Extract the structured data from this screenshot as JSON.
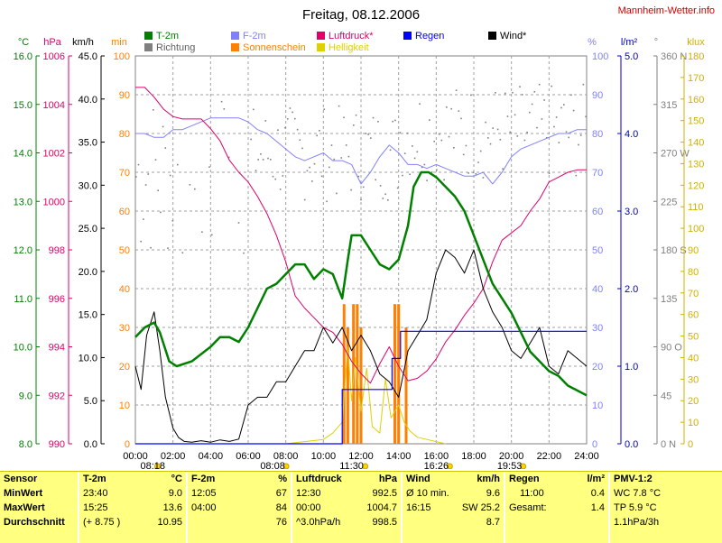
{
  "title": "Freitag, 08.12.2006",
  "site_link": "Mannheim-Wetter.info",
  "legend": [
    {
      "label": "T-2m",
      "color": "#008000"
    },
    {
      "label": "F-2m",
      "color": "#8080ff"
    },
    {
      "label": "Luftdruck*",
      "color": "#e0006a"
    },
    {
      "label": "Regen",
      "color": "#0000ff"
    },
    {
      "label": "Wind*",
      "color": "#000000"
    },
    {
      "label": "Richtung",
      "color": "#808080"
    },
    {
      "label": "Sonnenschein",
      "color": "#ff8000"
    },
    {
      "label": "Helligkeit",
      "color": "#e0d000"
    }
  ],
  "axis_units": {
    "temp": "°C",
    "pressure": "hPa",
    "wind": "km/h",
    "sun": "min",
    "humidity": "%",
    "rain": "l/m²",
    "direction": "°",
    "light": "klux"
  },
  "axes": {
    "temp": [
      "8.0",
      "9.0",
      "10.0",
      "11.0",
      "12.0",
      "13.0",
      "14.0",
      "15.0",
      "16.0"
    ],
    "pressure": [
      "990",
      "992",
      "994",
      "996",
      "998",
      "1000",
      "1002",
      "1004",
      "1006"
    ],
    "wind": [
      "0.0",
      "5.0",
      "10.0",
      "15.0",
      "20.0",
      "25.0",
      "30.0",
      "35.0",
      "40.0",
      "45.0"
    ],
    "sun": [
      "0",
      "10",
      "20",
      "30",
      "40",
      "50",
      "60",
      "70",
      "80",
      "90",
      "100"
    ],
    "humidity": [
      "0",
      "10",
      "20",
      "30",
      "40",
      "50",
      "60",
      "70",
      "80",
      "90",
      "100"
    ],
    "rain": [
      "0.0",
      "1.0",
      "2.0",
      "3.0",
      "4.0",
      "5.0"
    ],
    "direction": [
      "0 N",
      "45",
      "90 O",
      "135",
      "180 S",
      "225",
      "270 W",
      "315",
      "360 N"
    ],
    "light": [
      "0",
      "10",
      "20",
      "30",
      "40",
      "50",
      "60",
      "70",
      "80",
      "90",
      "100",
      "110",
      "120",
      "130",
      "140",
      "150",
      "160",
      "170",
      "180"
    ],
    "time": [
      "00:00",
      "02:00",
      "04:00",
      "06:00",
      "08:00",
      "10:00",
      "12:00",
      "14:00",
      "16:00",
      "18:00",
      "20:00",
      "22:00",
      "24:00"
    ]
  },
  "sun_times": [
    {
      "label": "08:18",
      "h": -0.6
    },
    {
      "label": "08:08",
      "h": 7.3
    },
    {
      "label": "11:30",
      "h": 11.5
    },
    {
      "label": "16:26",
      "h": 16.0
    },
    {
      "label": "19:53",
      "h": 19.9
    }
  ],
  "chart_data": {
    "type": "line",
    "title": "Freitag, 08.12.2006",
    "x_unit": "hour",
    "xlim": [
      0,
      24
    ],
    "series": [
      {
        "name": "T-2m",
        "unit": "°C",
        "ylim": [
          8,
          16
        ],
        "color": "#008000",
        "x": [
          0,
          0.5,
          1,
          1.3,
          1.8,
          2.2,
          3,
          4,
          4.5,
          5,
          5.5,
          6,
          6.5,
          7,
          7.5,
          8,
          8.5,
          9,
          9.5,
          10,
          10.5,
          11,
          11.3,
          11.5,
          12,
          12.5,
          13,
          13.5,
          14,
          14.5,
          14.8,
          15.2,
          15.6,
          16,
          16.5,
          17,
          17.5,
          18,
          18.5,
          19,
          19.5,
          20,
          20.5,
          21,
          21.5,
          22,
          22.5,
          23,
          23.5,
          24
        ],
        "y": [
          10.2,
          10.4,
          10.5,
          10.3,
          9.7,
          9.6,
          9.7,
          10.0,
          10.2,
          10.2,
          10.1,
          10.4,
          10.8,
          11.2,
          11.3,
          11.5,
          11.7,
          11.7,
          11.4,
          11.6,
          11.5,
          11.0,
          11.8,
          12.3,
          12.3,
          12.0,
          11.7,
          11.6,
          11.8,
          12.5,
          13.3,
          13.6,
          13.6,
          13.5,
          13.3,
          13.1,
          12.8,
          12.3,
          11.8,
          11.3,
          11.0,
          10.7,
          10.3,
          9.9,
          9.7,
          9.5,
          9.4,
          9.2,
          9.1,
          9.0
        ]
      },
      {
        "name": "Luftdruck*",
        "unit": "hPa",
        "ylim": [
          990,
          1006
        ],
        "color": "#e0006a",
        "x": [
          0,
          0.5,
          1,
          1.5,
          2,
          2.5,
          3,
          3.5,
          4,
          4.5,
          5,
          5.5,
          6,
          6.5,
          7,
          7.5,
          8,
          8.5,
          9,
          9.5,
          10,
          10.5,
          11,
          11.5,
          12,
          12.5,
          13,
          13.5,
          14,
          14.5,
          15,
          15.5,
          16,
          16.5,
          17,
          17.5,
          18,
          18.5,
          19,
          19.5,
          20,
          20.5,
          21,
          21.5,
          22,
          22.5,
          23,
          23.5,
          24
        ],
        "y": [
          1004.7,
          1004.7,
          1004.3,
          1003.8,
          1003.5,
          1003.4,
          1003.4,
          1003.4,
          1003.0,
          1002.5,
          1001.7,
          1001.2,
          1000.8,
          1000.2,
          999.5,
          998.6,
          997.5,
          996.1,
          995.6,
          995.2,
          994.8,
          994.6,
          994.1,
          993.4,
          992.9,
          992.5,
          993.3,
          994.0,
          993.2,
          992.6,
          992.7,
          993.0,
          993.5,
          994.2,
          994.7,
          995.3,
          995.8,
          996.4,
          997.5,
          998.4,
          998.7,
          999.0,
          999.6,
          1000.1,
          1000.8,
          1001.0,
          1001.2,
          1001.3,
          1001.3
        ]
      },
      {
        "name": "F-2m",
        "unit": "%",
        "ylim": [
          0,
          100
        ],
        "color": "#8080ff",
        "x": [
          0,
          0.5,
          1,
          1.5,
          2,
          2.5,
          3,
          3.5,
          4,
          4.5,
          5,
          5.5,
          6,
          6.5,
          7,
          7.5,
          8,
          8.5,
          9,
          9.5,
          10,
          10.5,
          11,
          11.5,
          12,
          12.5,
          13,
          13.5,
          14,
          14.5,
          15,
          15.5,
          16,
          16.5,
          17,
          17.5,
          18,
          18.5,
          19,
          19.5,
          20,
          20.5,
          21,
          21.5,
          22,
          22.5,
          23,
          23.5,
          24
        ],
        "y": [
          80,
          80,
          79,
          79,
          81,
          81,
          82,
          83,
          84,
          84,
          84,
          84,
          83,
          81,
          80,
          78,
          76,
          74,
          73,
          74,
          75,
          73,
          73,
          72,
          67,
          70,
          74,
          77,
          75,
          72,
          72,
          71,
          72,
          71,
          70,
          69,
          69,
          70,
          67,
          70,
          74,
          76,
          77,
          78,
          79,
          80,
          80,
          81,
          81
        ]
      },
      {
        "name": "Wind*",
        "unit": "km/h",
        "ylim": [
          0,
          50
        ],
        "color": "#000000",
        "x": [
          0,
          0.3,
          0.6,
          1,
          1.3,
          1.6,
          2,
          2.3,
          2.6,
          3,
          3.5,
          4,
          4.5,
          5,
          5.5,
          6,
          6.5,
          7,
          7.5,
          8,
          8.5,
          9,
          9.5,
          10,
          10.5,
          11,
          11.5,
          12,
          12.5,
          13,
          13.5,
          14,
          14.5,
          15,
          15.5,
          16,
          16.5,
          17,
          17.5,
          18,
          18.5,
          19,
          19.5,
          20,
          20.5,
          21,
          21.5,
          22,
          22.5,
          23,
          23.5,
          24
        ],
        "y": [
          10,
          7,
          14,
          17,
          12,
          6,
          2,
          0.8,
          0.3,
          0.2,
          0.4,
          0.2,
          0.5,
          0.3,
          0.6,
          5,
          6,
          6,
          8,
          8,
          10,
          12,
          12,
          15,
          13,
          15,
          12,
          14,
          12,
          9,
          8,
          6,
          12,
          14,
          16,
          22,
          25,
          24,
          22,
          25,
          20,
          17,
          15,
          12,
          11,
          13,
          15,
          10,
          9,
          12,
          11,
          10
        ]
      },
      {
        "name": "Regen",
        "unit": "l/m²",
        "ylim": [
          0,
          5
        ],
        "color": "#0000ff",
        "x": [
          0,
          11.0,
          11.0,
          13.65,
          13.65,
          14.1,
          14.1,
          24
        ],
        "y": [
          0,
          0,
          0.7,
          0.7,
          1.1,
          1.1,
          1.45,
          1.45
        ]
      },
      {
        "name": "Helligkeit",
        "unit": "klux",
        "ylim": [
          0,
          180
        ],
        "color": "#e0d000",
        "x": [
          8.0,
          9,
          10,
          10.5,
          11,
          11.3,
          11.5,
          11.7,
          12,
          12.3,
          12.6,
          13,
          13.3,
          13.6,
          14,
          14.3,
          14.6,
          15,
          15.5,
          16,
          16.5
        ],
        "y": [
          0,
          1,
          2,
          5,
          10,
          45,
          20,
          40,
          15,
          35,
          8,
          5,
          30,
          12,
          18,
          10,
          6,
          3,
          2,
          1,
          0
        ]
      },
      {
        "name": "Sonnenschein",
        "unit": "min",
        "ylim": [
          0,
          100
        ],
        "color": "#ff8000",
        "x": [
          11.1,
          11.3,
          11.6,
          11.8,
          12.0,
          13.8,
          14.0,
          14.4
        ],
        "y": [
          6,
          5,
          6,
          6,
          5,
          6,
          6,
          5
        ]
      }
    ],
    "direction": {
      "name": "Richtung",
      "unit": "°",
      "ylim": [
        0,
        360
      ],
      "color": "#808080"
    },
    "min_max_avg": {
      "T-2m": {
        "min_time": "23:40",
        "min": 9.0,
        "max_time": "15:25",
        "max": 13.6,
        "avg": 10.95
      },
      "F-2m": {
        "min_time": "12:05",
        "min": 67,
        "max_time": "04:00",
        "max": 84,
        "avg": 76
      },
      "Luftdruck": {
        "min_time": "12:30",
        "min": 992.5,
        "max_time": "00:00",
        "max": 1004.7,
        "avg": 998.5
      },
      "Wind": {
        "min": 9.6,
        "max_time": "16:15",
        "max": 25.2,
        "avg": 8.7
      },
      "Regen": {
        "min_time": "11:00",
        "min": 0.4,
        "total": 1.4
      }
    }
  },
  "footer": {
    "sensor": {
      "head": "Sensor",
      "min": "MinWert",
      "max": "MaxWert",
      "avg": "Durchschnitt"
    },
    "temp": {
      "head": "T-2m",
      "unit": "°C",
      "min_l": "23:40",
      "min_r": "9.0",
      "max_l": "15:25",
      "max_r": "13.6",
      "avg_l": "(+ 8.75 )",
      "avg_r": "10.95"
    },
    "hum": {
      "head": "F-2m",
      "unit": "%",
      "min_l": "12:05",
      "min_r": "67",
      "max_l": "04:00",
      "max_r": "84",
      "avg_l": "",
      "avg_r": "76"
    },
    "press": {
      "head": "Luftdruck",
      "unit": "hPa",
      "min_l": "12:30",
      "min_r": "992.5",
      "max_l": "00:00",
      "max_r": "1004.7",
      "avg_l": "^3.0hPa/h",
      "avg_r": "998.5"
    },
    "wind": {
      "head": "Wind",
      "unit": "km/h",
      "min_l": "Ø 10 min.",
      "min_r": "9.6",
      "max_l": "16:15",
      "max_r": "SW 25.2",
      "avg_l": "",
      "avg_r": "8.7"
    },
    "rain": {
      "head": "Regen",
      "unit": "l/m²",
      "min_l": "11:00",
      "min_r": "0.4",
      "max_l": "Gesamt:",
      "max_r": "1.4",
      "avg_l": "",
      "avg_r": ""
    },
    "pmv": {
      "head": "PMV-1:2",
      "l1": "WC 7.8 °C",
      "l2": "TP 5.9 °C",
      "l3": "1.1hPa/3h"
    }
  }
}
